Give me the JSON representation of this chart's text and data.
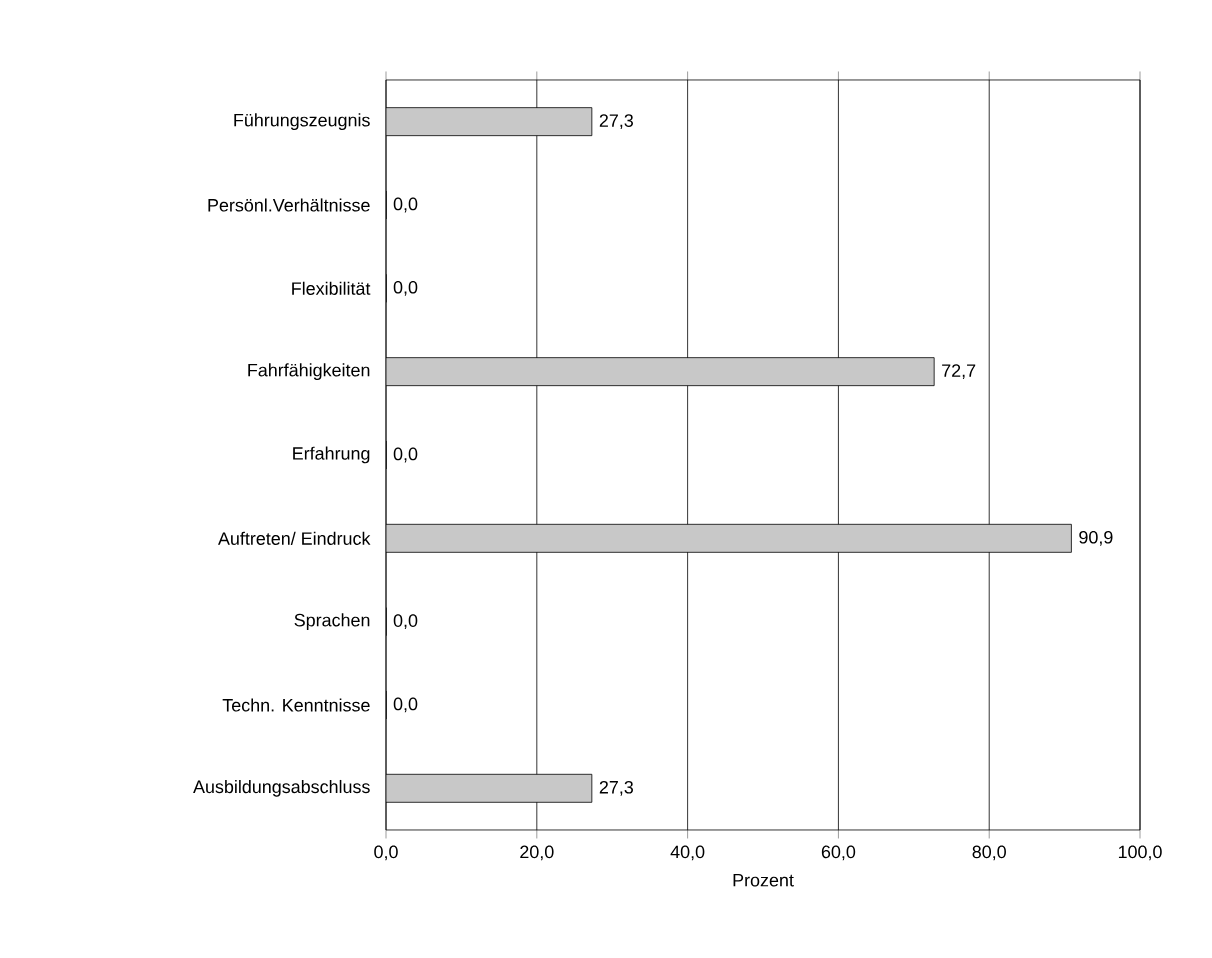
{
  "chart_data": {
    "type": "bar",
    "orientation": "horizontal",
    "xlabel": "Prozent",
    "categories": [
      "Führungszeugnis",
      "Persönl.Verhältnisse",
      "Flexibilität",
      "Fahrfähigkeiten",
      "Erfahrung",
      "Auftreten/ Eindruck",
      "Sprachen",
      "Techn. Kenntnisse",
      "Ausbildungsabschluss"
    ],
    "values": [
      27.3,
      0.0,
      0.0,
      72.7,
      0.0,
      90.9,
      0.0,
      0.0,
      27.3
    ],
    "value_labels": [
      "27,3",
      "0,0",
      "0,0",
      "72,7",
      "0,0",
      "90,9",
      "0,0",
      "0,0",
      "27,3"
    ],
    "color": "#c8c8c8",
    "xlim": [
      0,
      100
    ],
    "xticks": [
      {
        "value": 0,
        "label": "0,0"
      },
      {
        "value": 20,
        "label": "20,0"
      },
      {
        "value": 40,
        "label": "40,0"
      },
      {
        "value": 60,
        "label": "60,0"
      },
      {
        "value": 80,
        "label": "80,0"
      },
      {
        "value": 100,
        "label": "100,0"
      }
    ],
    "grid": "x"
  }
}
